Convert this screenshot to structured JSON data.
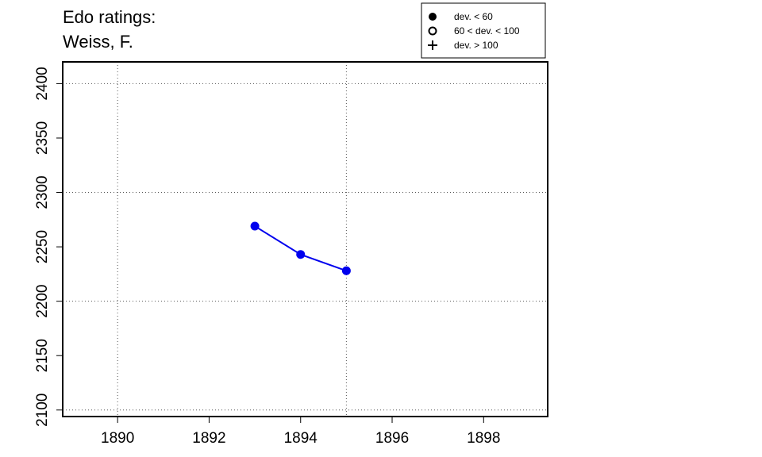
{
  "chart_data": {
    "type": "line",
    "title_lines": [
      "Edo ratings:",
      "Weiss, F."
    ],
    "xlabel": "",
    "ylabel": "",
    "xlim": [
      1888.8,
      1899.4
    ],
    "ylim": [
      2094,
      2420
    ],
    "x_ticks": [
      1890,
      1892,
      1894,
      1896,
      1898
    ],
    "y_ticks": [
      2100,
      2150,
      2200,
      2250,
      2300,
      2350,
      2400
    ],
    "grid_x": [
      1890,
      1895
    ],
    "grid_y": [
      2100,
      2200,
      2300,
      2400
    ],
    "grid": "dotted",
    "series": [
      {
        "color": "#0000ee",
        "marker": "filled-circle",
        "x": [
          1893,
          1894,
          1895
        ],
        "y": [
          2269,
          2243,
          2228
        ]
      }
    ],
    "legend": {
      "position": "top-right",
      "entries": [
        {
          "symbol": "filled-circle",
          "label": "dev. < 60"
        },
        {
          "symbol": "open-circle",
          "label": "60 < dev. < 100"
        },
        {
          "symbol": "plus",
          "label": "dev. > 100"
        }
      ]
    }
  }
}
